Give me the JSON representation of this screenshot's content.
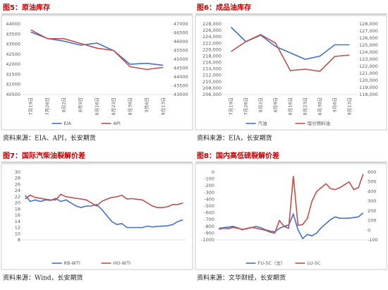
{
  "chart_data": [
    {
      "type": "line",
      "title": "图5：原油库存",
      "source": "资料来源：EIA、API，长安期货",
      "categories": [
        "7月19日",
        "7月26日",
        "8月2日",
        "8月9日",
        "8月16日",
        "8月23日",
        "8月30日",
        "9月6日",
        "9月13日"
      ],
      "series": [
        {
          "name": "EIA",
          "color": "#4472c4",
          "values": [
            43600,
            43280,
            43150,
            42950,
            43050,
            42680,
            42000,
            42050,
            41950
          ]
        },
        {
          "name": "API",
          "color": "#c0504d",
          "axis": "y2",
          "values": [
            46670,
            46170,
            46170,
            45900,
            45630,
            45500,
            44580,
            44420,
            44540
          ]
        }
      ],
      "ylim": [
        40500,
        44000
      ],
      "yticks": [
        40500,
        41000,
        41500,
        42000,
        42500,
        43000,
        43500,
        44000
      ],
      "y2lim": [
        43000,
        47000
      ],
      "y2ticks": [
        43000,
        43500,
        44000,
        44500,
        45000,
        45500,
        46000,
        46500,
        47000
      ]
    },
    {
      "type": "line",
      "title": "图6：成品油库存",
      "source": "资料来源：EIA，长安期货",
      "categories": [
        "7月19日",
        "7月26日",
        "8月2日",
        "8月9日",
        "8月16日",
        "8月23日",
        "8月30日",
        "9月6日",
        "9月13日"
      ],
      "series": [
        {
          "name": "汽油",
          "color": "#4472c4",
          "values": [
            227000,
            222500,
            224500,
            221000,
            219000,
            217000,
            218000,
            221500,
            221500
          ]
        },
        {
          "name": "馏分燃料油",
          "color": "#c0504d",
          "axis": "y2",
          "values": [
            124100,
            125500,
            126500,
            125300,
            121400,
            121600,
            121300,
            123400,
            123600
          ]
        }
      ],
      "ylim": [
        206000,
        228000
      ],
      "yticks": [
        {
          "value": 206000,
          "label": "206,000"
        },
        {
          "value": 208000,
          "label": "208,000"
        },
        {
          "value": 210000,
          "label": "210,000"
        },
        {
          "value": 212000,
          "label": "212,000"
        },
        {
          "value": 214000,
          "label": "214,000"
        },
        {
          "value": 216000,
          "label": "216,000"
        },
        {
          "value": 218000,
          "label": "218,000"
        },
        {
          "value": 220000,
          "label": "220,000"
        },
        {
          "value": 222000,
          "label": "222,000"
        },
        {
          "value": 224000,
          "label": "224,000"
        },
        {
          "value": 226000,
          "label": "226,000"
        },
        {
          "value": 228000,
          "label": "228,000"
        }
      ],
      "y2lim": [
        118000,
        128000
      ],
      "y2ticks": [
        {
          "value": 118000,
          "label": "118,000"
        },
        {
          "value": 119000,
          "label": "119,000"
        },
        {
          "value": 120000,
          "label": "120,000"
        },
        {
          "value": 121000,
          "label": "121,000"
        },
        {
          "value": 122000,
          "label": "122,000"
        },
        {
          "value": 123000,
          "label": "123,000"
        },
        {
          "value": 124000,
          "label": "124,000"
        },
        {
          "value": 125000,
          "label": "125,000"
        },
        {
          "value": 126000,
          "label": "126,000"
        },
        {
          "value": 127000,
          "label": "127,000"
        },
        {
          "value": 128000,
          "label": "128,000"
        }
      ]
    },
    {
      "type": "line",
      "title": "图7：国际汽柴油裂解价差",
      "source": "资料来源：Wind，长安期货",
      "categories": [
        null,
        null,
        null,
        null,
        null,
        null,
        null,
        null,
        null,
        null,
        null,
        null,
        null,
        null,
        null,
        null,
        null,
        null,
        null,
        null,
        null,
        null,
        null,
        null,
        null,
        null,
        null,
        null,
        null,
        null,
        null,
        null
      ],
      "series": [
        {
          "name": "RB-WTI",
          "color": "#4472c4",
          "values": [
            22.5,
            20.5,
            21,
            20.5,
            21,
            20.8,
            21.5,
            20.5,
            21,
            20,
            19,
            18.5,
            19,
            19,
            19.5,
            18,
            16,
            14,
            13,
            13.3,
            12,
            12,
            12,
            12,
            12.5,
            12.2,
            12.4,
            12.5,
            12.6,
            13,
            14,
            14.5
          ]
        },
        {
          "name": "HO-WTI",
          "color": "#c0504d",
          "values": [
            21.3,
            22.5,
            21.8,
            21.5,
            21.2,
            21,
            21,
            22.8,
            22,
            21.8,
            21.5,
            21.3,
            21,
            20,
            19,
            20.5,
            21.2,
            21.8,
            22,
            22.5,
            21.3,
            21.4,
            21.2,
            21,
            20,
            19,
            18.5,
            18.5,
            18.8,
            19.5,
            19.5,
            20
          ]
        }
      ],
      "ylim": [
        8,
        30
      ],
      "yticks": [
        8,
        10,
        12,
        14,
        16,
        18,
        20,
        22,
        24,
        26,
        28,
        30
      ]
    },
    {
      "type": "line",
      "title": "图8：国内高低硫裂解价差",
      "source": "资料来源：文华财经，长安期货",
      "categories": [
        null,
        null,
        null,
        null,
        null,
        null,
        null,
        null,
        null,
        null,
        null,
        null,
        null,
        null,
        null,
        null,
        null,
        null,
        null,
        null,
        null,
        null,
        null,
        null,
        null,
        null,
        null,
        null,
        null,
        null,
        null,
        null
      ],
      "series": [
        {
          "name": "FU-SC（左）",
          "color": "#4472c4",
          "values": [
            -830,
            -820,
            -810,
            -800,
            -820,
            -850,
            -830,
            -820,
            -800,
            -820,
            -850,
            -870,
            -880,
            -830,
            -800,
            -780,
            -620,
            -850,
            -980,
            -920,
            -940,
            -900,
            -820,
            -760,
            -700,
            -660,
            -680,
            -680,
            -680,
            -670,
            -660,
            -600
          ]
        },
        {
          "name": "LU-SC",
          "color": "#c0504d",
          "axis": "y2",
          "values": [
            10,
            20,
            15,
            30,
            20,
            10,
            15,
            30,
            20,
            10,
            0,
            -20,
            -30,
            100,
            40,
            20,
            560,
            50,
            60,
            120,
            300,
            400,
            440,
            480,
            430,
            420,
            440,
            470,
            500,
            420,
            440,
            580
          ]
        }
      ],
      "ylim": [
        -1000,
        0
      ],
      "yticks": [
        -1000,
        -900,
        -800,
        -700,
        -600,
        -500,
        -400,
        -300,
        -200,
        -100,
        0
      ],
      "y2lim": [
        -100,
        600
      ],
      "y2ticks": [
        -100,
        0,
        100,
        200,
        300,
        400,
        500,
        600
      ]
    }
  ]
}
